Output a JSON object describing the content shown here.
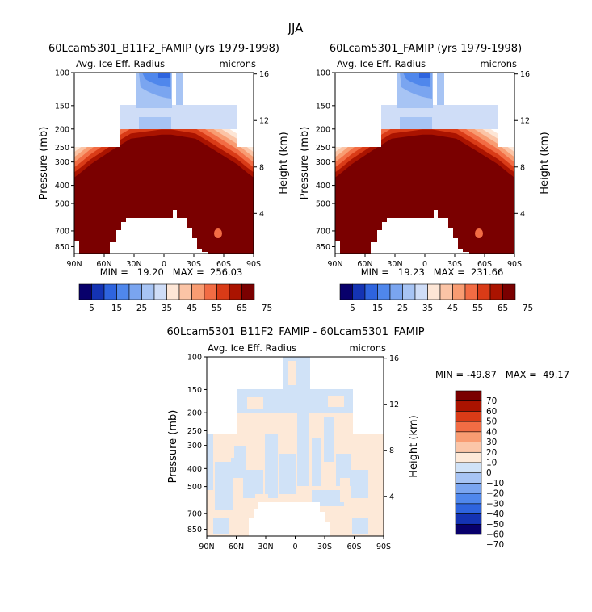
{
  "figure_title": "JJA",
  "colors": {
    "seq": [
      "#08006b",
      "#1433b3",
      "#2e64de",
      "#4f87ec",
      "#7aa5f0",
      "#a7c4f4",
      "#cfddf7",
      "#fde6d6",
      "#fbc4a6",
      "#f89c72",
      "#f26c44",
      "#d93b17",
      "#aa1300",
      "#7a0000"
    ],
    "diff": [
      "#08006b",
      "#1433b3",
      "#2e64de",
      "#4f87ec",
      "#7aa5f0",
      "#a7c4f4",
      "#d0e2f7",
      "#fde9d8",
      "#fbc6a8",
      "#f89c72",
      "#f26c44",
      "#d93b17",
      "#aa1300",
      "#7a0000"
    ]
  },
  "chart_data": [
    {
      "type": "heatmap",
      "title": "60Lcam5301_B11F2_FAMIP (yrs 1979-1998)",
      "field_label": "Avg. Ice Eff. Radius",
      "units": "microns",
      "ylabel": "Pressure (mb)",
      "y2label": "Height (km)",
      "xticks": [
        "90N",
        "60N",
        "30N",
        "0",
        "30S",
        "60S",
        "90S"
      ],
      "yticks": [
        100,
        150,
        200,
        250,
        300,
        400,
        500,
        700,
        850
      ],
      "y2ticks": [
        4,
        8,
        12,
        16
      ],
      "ylim": [
        925,
        100
      ],
      "min_text": "MIN =   19.20   MAX =  256.03",
      "colorbar_levels": [
        5,
        10,
        15,
        20,
        25,
        30,
        35,
        40,
        45,
        50,
        55,
        60,
        65,
        70,
        75
      ],
      "colorbar_labels": [
        "5",
        "15",
        "25",
        "35",
        "45",
        "55",
        "65",
        "75"
      ]
    },
    {
      "type": "heatmap",
      "title": "60Lcam5301_FAMIP (yrs 1979-1998)",
      "field_label": "Avg. Ice Eff. Radius",
      "units": "microns",
      "ylabel": "Pressure (mb)",
      "y2label": "Height (km)",
      "xticks": [
        "90N",
        "60N",
        "30N",
        "0",
        "30S",
        "60S",
        "90S"
      ],
      "yticks": [
        100,
        150,
        200,
        250,
        300,
        400,
        500,
        700,
        850
      ],
      "y2ticks": [
        4,
        8,
        12,
        16
      ],
      "ylim": [
        925,
        100
      ],
      "min_text": "MIN =   19.23   MAX =  231.66",
      "colorbar_levels": [
        5,
        10,
        15,
        20,
        25,
        30,
        35,
        40,
        45,
        50,
        55,
        60,
        65,
        70,
        75
      ],
      "colorbar_labels": [
        "5",
        "15",
        "25",
        "35",
        "45",
        "55",
        "65",
        "75"
      ]
    },
    {
      "type": "heatmap",
      "title": "60Lcam5301_B11F2_FAMIP - 60Lcam5301_FAMIP",
      "field_label": "Avg. Ice Eff. Radius",
      "units": "microns",
      "ylabel": "Pressure (mb)",
      "y2label": "Height (km)",
      "xticks": [
        "90N",
        "60N",
        "30N",
        "0",
        "30S",
        "60S",
        "90S"
      ],
      "yticks": [
        100,
        150,
        200,
        250,
        300,
        400,
        500,
        700,
        850
      ],
      "y2ticks": [
        4,
        8,
        12,
        16
      ],
      "ylim": [
        925,
        100
      ],
      "min_text": "MIN = -49.87   MAX =  49.17",
      "colorbar_levels": [
        70,
        60,
        50,
        40,
        30,
        20,
        10,
        0,
        -10,
        -20,
        -30,
        -40,
        -50,
        -60,
        -70
      ],
      "colorbar_labels": [
        "70",
        "60",
        "50",
        "40",
        "30",
        "20",
        "10",
        "0",
        "−10",
        "−20",
        "−30",
        "−40",
        "−50",
        "−60",
        "−70"
      ]
    }
  ]
}
